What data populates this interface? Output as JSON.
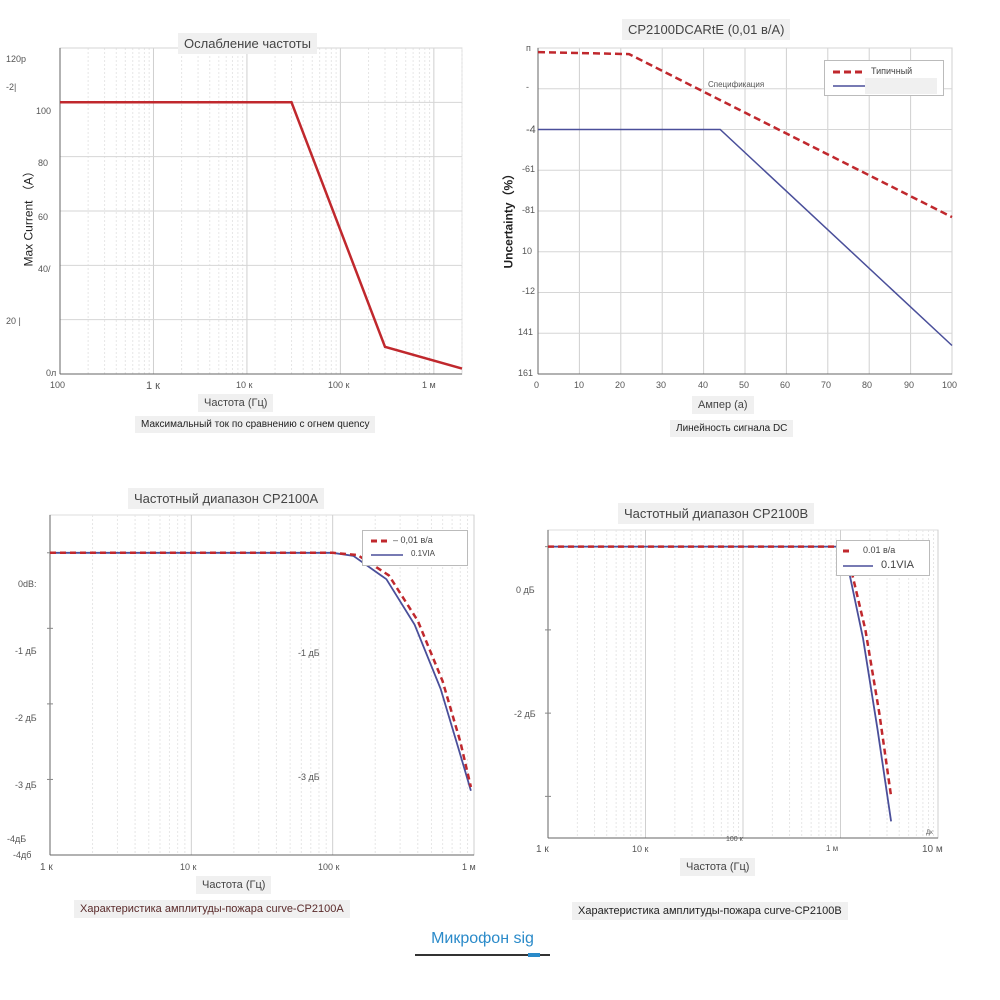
{
  "charts": {
    "c1": {
      "title": "Ослабление частоты",
      "ylabel": "Max Current （A）",
      "yticks": [
        "120р",
        "-2|",
        "100",
        "80",
        "60",
        "40/",
        "20 |",
        "0л"
      ],
      "xticks": [
        "100",
        "1 к",
        "10 к",
        "100 к",
        "1 м"
      ],
      "xlabel": "Частота (Гц)",
      "caption": "Максимальный ток по сравнению с огнем quency",
      "line_color": "#c0282d"
    },
    "c2": {
      "title": "CP2100DCARtE (0,01 в/А)",
      "ylabel": "Uncertainty（%）",
      "yticks": [
        "п",
        "-",
        "-4",
        "-61",
        "-81",
        "10",
        "-12",
        "141",
        "161"
      ],
      "xticks": [
        "0",
        "10",
        "20",
        "30",
        "40",
        "50",
        "60",
        "70",
        "80",
        "90",
        "100"
      ],
      "xlabel": "Ампер (а)",
      "caption": "Линейность сигнала DC",
      "legend": [
        "Типичный",
        ""
      ],
      "annotation": "Спецификация",
      "colors": {
        "typical": "#c0282d",
        "spec": "#4a4f9a"
      }
    },
    "c3": {
      "title": "Частотный диапазон CP2100A",
      "yticks": [
        "0dB:",
        "-1 дБ",
        "-2 дБ",
        "-3 дБ",
        "-4дБ",
        "-4дб"
      ],
      "mid_labels": [
        "-1 дБ",
        "-3 дБ"
      ],
      "xticks": [
        "1 к",
        "10 к",
        "100 к",
        "1 м"
      ],
      "xlabel": "Частота (Гц)",
      "caption": "Характеристика амплитуды-пожара curve-CP2100A",
      "legend": [
        "– 0,01 в/а",
        "0.1VIA"
      ],
      "colors": {
        "dashed": "#c0282d",
        "solid": "#4a4f9a"
      }
    },
    "c4": {
      "title": "Частотный диапазон CP2100B",
      "yticks": [
        "0 дБ",
        "-2 дБ"
      ],
      "xticks": [
        "1 к",
        "10 к",
        "1 м",
        "10 м"
      ],
      "xtick_small": [
        "100 к",
        "Дк"
      ],
      "xlabel": "Частота (Гц)",
      "caption": "Характеристика амплитуды-пожара curve-CP2100B",
      "legend": [
        "0.01 в/а",
        "0.1VIA"
      ],
      "colors": {
        "dashed": "#c0282d",
        "solid": "#4a4f9a"
      }
    }
  },
  "chart_data": [
    {
      "type": "line",
      "title": "Ослабление частоты",
      "xlabel": "Частота (Гц)",
      "ylabel": "Max Current (A)",
      "xscale": "log",
      "xlim": [
        100,
        2000000
      ],
      "ylim": [
        0,
        120
      ],
      "series": [
        {
          "name": "Max current",
          "x": [
            100,
            30000,
            300000,
            2000000
          ],
          "y": [
            100,
            100,
            10,
            2
          ]
        }
      ]
    },
    {
      "type": "line",
      "title": "CP2100DCARtE (0,01 в/А)",
      "xlabel": "Ампер (а)",
      "ylabel": "Uncertainty (%)",
      "xlim": [
        0,
        100
      ],
      "ylim": [
        0,
        16
      ],
      "series": [
        {
          "name": "Типичный",
          "x": [
            0,
            22,
            100
          ],
          "y": [
            0.2,
            0.3,
            8.3
          ]
        },
        {
          "name": "Спецификация",
          "x": [
            0,
            44,
            100
          ],
          "y": [
            4,
            4,
            14.6
          ]
        }
      ]
    },
    {
      "type": "line",
      "title": "Частотный диапазон CP2100A",
      "xlabel": "Частота (Гц)",
      "xscale": "log",
      "xlim": [
        1000,
        1000000
      ],
      "ylim": [
        -4,
        0.5
      ],
      "series": [
        {
          "name": "– 0,01 в/а",
          "x": [
            1000,
            100000,
            150000,
            250000,
            400000,
            600000,
            800000,
            950000
          ],
          "y": [
            0,
            0,
            -0.03,
            -0.3,
            -0.9,
            -1.7,
            -2.5,
            -3.1
          ]
        },
        {
          "name": "0.1VIA",
          "x": [
            1000,
            100000,
            140000,
            240000,
            380000,
            580000,
            780000,
            950000
          ],
          "y": [
            0,
            0,
            -0.04,
            -0.35,
            -0.95,
            -1.8,
            -2.6,
            -3.15
          ]
        }
      ]
    },
    {
      "type": "line",
      "title": "Частотный диапазон CP2100B",
      "xlabel": "Частота (Гц)",
      "xscale": "log",
      "xlim": [
        1000,
        10000000
      ],
      "ylim": [
        -3.5,
        0.2
      ],
      "series": [
        {
          "name": "0.01 в/а",
          "x": [
            1000,
            1000000,
            1300000,
            1800000,
            2500000,
            3300000
          ],
          "y": [
            0,
            0,
            -0.3,
            -1.0,
            -2.0,
            -3.0
          ]
        },
        {
          "name": "0.1VIA",
          "x": [
            1000,
            1000000,
            1250000,
            1700000,
            2400000,
            3300000
          ],
          "y": [
            0,
            0,
            -0.35,
            -1.1,
            -2.2,
            -3.3
          ]
        }
      ]
    }
  ],
  "footer": {
    "text": "Микрофон sig"
  }
}
